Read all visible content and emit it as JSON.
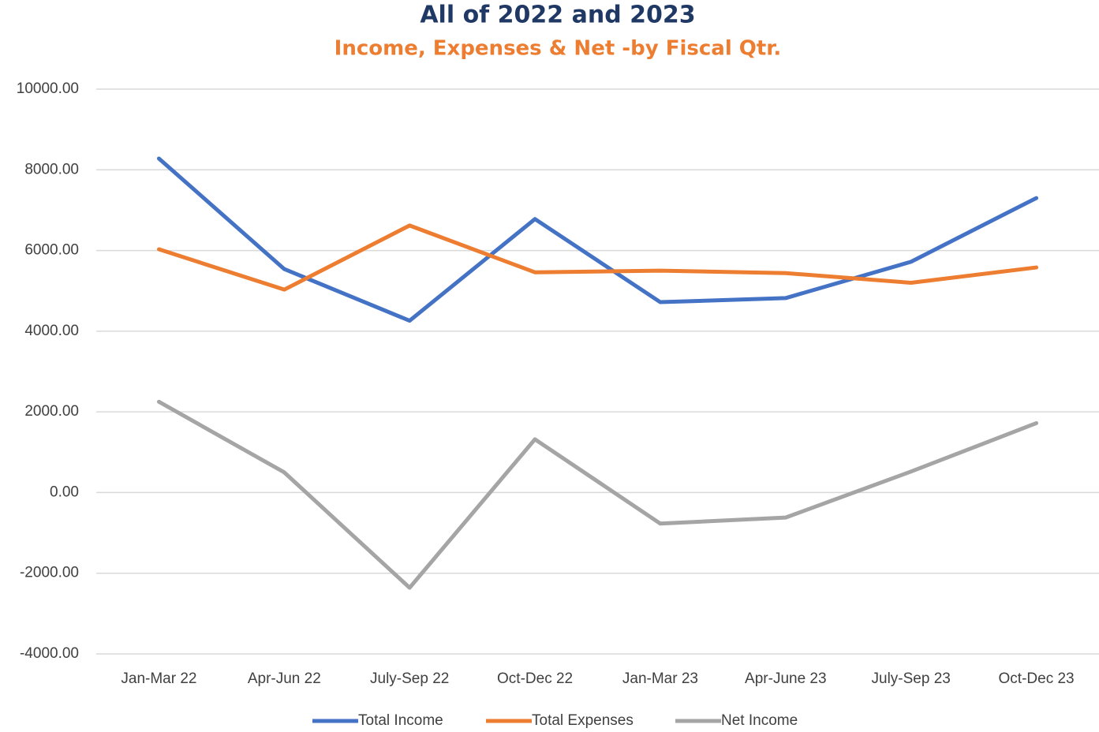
{
  "chart_data": {
    "type": "line",
    "title": "All of 2022 and 2023",
    "subtitle": "Income, Expenses & Net -by Fiscal Qtr.",
    "categories": [
      "Jan-Mar 22",
      "Apr-Jun 22",
      "July-Sep 22",
      "Oct-Dec 22",
      "Jan-Mar 23",
      "Apr-June 23",
      "July-Sep 23",
      "Oct-Dec 23"
    ],
    "series": [
      {
        "name": "Total Income",
        "color": "#4472c4",
        "values": [
          8280,
          5540,
          4260,
          6780,
          4720,
          4820,
          5720,
          7300
        ]
      },
      {
        "name": "Total Expenses",
        "color": "#ed7d31",
        "values": [
          6030,
          5030,
          6620,
          5460,
          5500,
          5440,
          5200,
          5580
        ]
      },
      {
        "name": "Net Income",
        "color": "#a5a5a5",
        "values": [
          2250,
          500,
          -2360,
          1320,
          -770,
          -620,
          520,
          1720
        ]
      }
    ],
    "ylim": [
      -4000,
      10000
    ],
    "yticks": [
      {
        "value": -4000,
        "label": "-4000.00"
      },
      {
        "value": -2000,
        "label": "-2000.00"
      },
      {
        "value": 0,
        "label": "0.00"
      },
      {
        "value": 2000,
        "label": "2000.00"
      },
      {
        "value": 4000,
        "label": "4000.00"
      },
      {
        "value": 6000,
        "label": "6000.00"
      },
      {
        "value": 8000,
        "label": "8000.00"
      },
      {
        "value": 10000,
        "label": "10000.00"
      }
    ],
    "grid": true,
    "legend": "bottom"
  }
}
